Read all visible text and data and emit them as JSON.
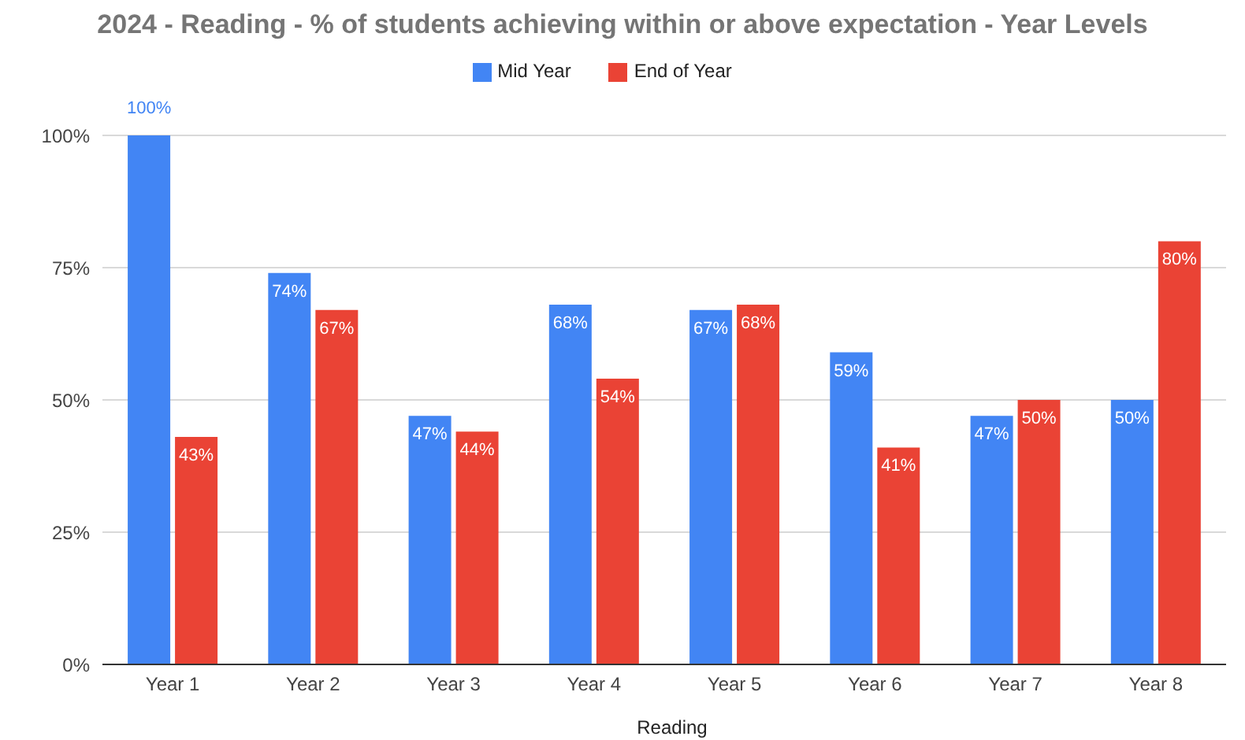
{
  "chart_data": {
    "type": "bar",
    "title": "2024 - Reading - % of students achieving within or above expectation - Year Levels",
    "xlabel": "Reading",
    "categories": [
      "Year 1",
      "Year 2",
      "Year 3",
      "Year 4",
      "Year 5",
      "Year 6",
      "Year 7",
      "Year 8"
    ],
    "series": [
      {
        "name": "Mid Year",
        "color": "#4285f4",
        "values": [
          100,
          74,
          47,
          68,
          67,
          59,
          47,
          50
        ],
        "value_labels": [
          "100%",
          "74%",
          "47%",
          "68%",
          "67%",
          "59%",
          "47%",
          "50%"
        ]
      },
      {
        "name": "End of Year",
        "color": "#ea4335",
        "values": [
          43,
          67,
          44,
          54,
          68,
          41,
          50,
          80
        ],
        "value_labels": [
          "43%",
          "67%",
          "44%",
          "54%",
          "68%",
          "41%",
          "50%",
          "80%"
        ]
      }
    ],
    "ylim": [
      0,
      100
    ],
    "yticks": [
      {
        "value": 0,
        "label": "0%"
      },
      {
        "value": 25,
        "label": "25%"
      },
      {
        "value": 50,
        "label": "50%"
      },
      {
        "value": 75,
        "label": "75%"
      },
      {
        "value": 100,
        "label": "100%"
      }
    ],
    "grid": "y",
    "legend": "top"
  }
}
